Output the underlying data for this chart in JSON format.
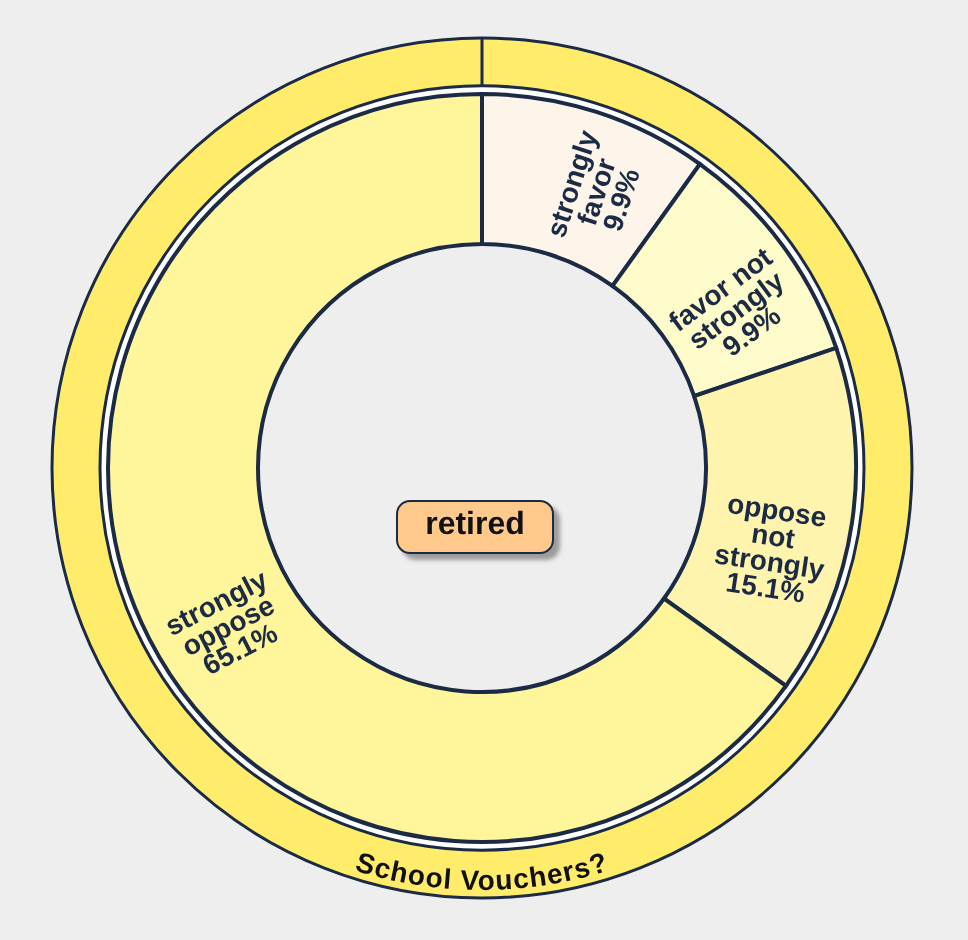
{
  "chart_data": {
    "type": "donut",
    "title": "School Vouchers?",
    "categories": [
      "strongly favor",
      "favor not strongly",
      "oppose not strongly",
      "strongly oppose"
    ],
    "values": [
      9.9,
      9.9,
      15.1,
      65.1
    ],
    "colors": [
      "#fdf5ea",
      "#fffccb",
      "#fff4ae",
      "#fff59b"
    ],
    "value_labels": [
      "9.9%",
      "9.9%",
      "15.1%",
      "65.1%"
    ],
    "annotations": [
      "retired"
    ]
  }
}
